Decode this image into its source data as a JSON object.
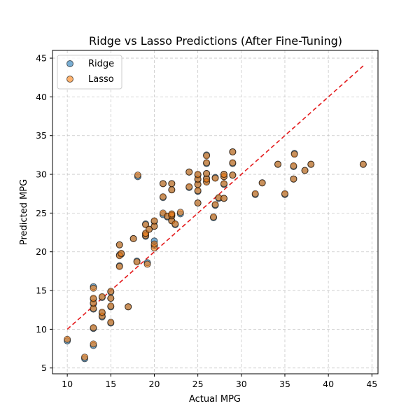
{
  "chart_data": {
    "type": "scatter",
    "title": "Ridge vs Lasso Predictions (After Fine-Tuning)",
    "xlabel": "Actual MPG",
    "ylabel": "Predicted MPG",
    "xlim": [
      8.3,
      45.7
    ],
    "ylim": [
      4.25,
      46.0
    ],
    "xticks": [
      10,
      15,
      20,
      25,
      30,
      35,
      40,
      45
    ],
    "yticks": [
      5,
      10,
      15,
      20,
      25,
      30,
      35,
      40,
      45
    ],
    "grid": true,
    "legend_position": "top-left",
    "reference_line": {
      "x": [
        10,
        44
      ],
      "y": [
        10,
        44
      ],
      "color": "#e41a1c",
      "style": "dashed"
    },
    "series": [
      {
        "name": "Ridge",
        "color": "#1f77b4",
        "points": [
          [
            10,
            8.5
          ],
          [
            12,
            6.2
          ],
          [
            13,
            7.9
          ],
          [
            13,
            10.1
          ],
          [
            13,
            12.6
          ],
          [
            13,
            13.3
          ],
          [
            13,
            13.9
          ],
          [
            13,
            15.5
          ],
          [
            14,
            11.6
          ],
          [
            14,
            12.1
          ],
          [
            14,
            14.1
          ],
          [
            15,
            10.8
          ],
          [
            15,
            12.9
          ],
          [
            15,
            14.0
          ],
          [
            15,
            14.8
          ],
          [
            16,
            18.2
          ],
          [
            16,
            19.6
          ],
          [
            16,
            20.9
          ],
          [
            16.2,
            19.7
          ],
          [
            17,
            12.9
          ],
          [
            17.6,
            21.7
          ],
          [
            18,
            18.8
          ],
          [
            18.1,
            29.7
          ],
          [
            19,
            22.0
          ],
          [
            19,
            22.3
          ],
          [
            19,
            23.6
          ],
          [
            19.2,
            18.6
          ],
          [
            19.4,
            22.9
          ],
          [
            20,
            20.8
          ],
          [
            20,
            21.4
          ],
          [
            20,
            23.3
          ],
          [
            20,
            23.9
          ],
          [
            21,
            24.8
          ],
          [
            21,
            27.0
          ],
          [
            21,
            28.8
          ],
          [
            21.5,
            24.5
          ],
          [
            22,
            24.0
          ],
          [
            22,
            24.6
          ],
          [
            22,
            24.8
          ],
          [
            22,
            28.0
          ],
          [
            22,
            28.8
          ],
          [
            22.4,
            23.5
          ],
          [
            23,
            24.9
          ],
          [
            24,
            28.3
          ],
          [
            24,
            30.3
          ],
          [
            25,
            26.3
          ],
          [
            25,
            27.8
          ],
          [
            25,
            28.7
          ],
          [
            25,
            29.3
          ],
          [
            25,
            29.9
          ],
          [
            26,
            29.1
          ],
          [
            26,
            29.5
          ],
          [
            26,
            30.1
          ],
          [
            26,
            31.4
          ],
          [
            26,
            32.5
          ],
          [
            26.8,
            24.4
          ],
          [
            27,
            26.0
          ],
          [
            27,
            29.6
          ],
          [
            27.4,
            26.9
          ],
          [
            28,
            26.9
          ],
          [
            28,
            28.7
          ],
          [
            28,
            29.7
          ],
          [
            28,
            30.0
          ],
          [
            29,
            29.9
          ],
          [
            29,
            31.4
          ],
          [
            29,
            32.9
          ],
          [
            31.6,
            27.4
          ],
          [
            32.4,
            28.9
          ],
          [
            34.2,
            31.3
          ],
          [
            35,
            27.4
          ],
          [
            36,
            29.4
          ],
          [
            36,
            31.0
          ],
          [
            36.1,
            32.7
          ],
          [
            37.3,
            30.5
          ],
          [
            38,
            31.3
          ],
          [
            44,
            31.3
          ]
        ]
      },
      {
        "name": "Lasso",
        "color": "#ff7f0e",
        "points": [
          [
            10,
            8.7
          ],
          [
            12,
            6.4
          ],
          [
            13,
            8.1
          ],
          [
            13,
            10.2
          ],
          [
            13,
            12.7
          ],
          [
            13,
            13.4
          ],
          [
            13,
            14.0
          ],
          [
            13,
            15.3
          ],
          [
            14,
            11.7
          ],
          [
            14,
            12.2
          ],
          [
            14,
            14.2
          ],
          [
            15,
            10.9
          ],
          [
            15,
            13.0
          ],
          [
            15,
            14.0
          ],
          [
            15,
            14.9
          ],
          [
            16,
            18.1
          ],
          [
            16,
            19.5
          ],
          [
            16,
            20.9
          ],
          [
            16.2,
            19.8
          ],
          [
            17,
            12.9
          ],
          [
            17.6,
            21.7
          ],
          [
            18,
            18.7
          ],
          [
            18.1,
            29.9
          ],
          [
            19,
            22.1
          ],
          [
            19,
            22.4
          ],
          [
            19,
            23.5
          ],
          [
            19.2,
            18.4
          ],
          [
            19.4,
            22.9
          ],
          [
            20,
            20.5
          ],
          [
            20,
            21.0
          ],
          [
            20,
            23.3
          ],
          [
            20,
            24.0
          ],
          [
            21,
            25.0
          ],
          [
            21,
            27.1
          ],
          [
            21,
            28.8
          ],
          [
            21.5,
            24.6
          ],
          [
            22,
            24.0
          ],
          [
            22,
            24.7
          ],
          [
            22,
            24.9
          ],
          [
            22,
            28.0
          ],
          [
            22,
            28.8
          ],
          [
            22.4,
            23.6
          ],
          [
            23,
            25.1
          ],
          [
            24,
            28.4
          ],
          [
            24,
            30.3
          ],
          [
            25,
            26.3
          ],
          [
            25,
            27.9
          ],
          [
            25,
            28.7
          ],
          [
            25,
            29.4
          ],
          [
            25,
            30.0
          ],
          [
            26,
            29.0
          ],
          [
            26,
            29.4
          ],
          [
            26,
            30.1
          ],
          [
            26,
            31.5
          ],
          [
            26,
            32.4
          ],
          [
            26.8,
            24.5
          ],
          [
            27,
            26.1
          ],
          [
            27,
            29.5
          ],
          [
            27.4,
            27.0
          ],
          [
            28,
            26.9
          ],
          [
            28,
            28.8
          ],
          [
            28,
            29.7
          ],
          [
            28,
            30.0
          ],
          [
            29,
            29.9
          ],
          [
            29,
            31.5
          ],
          [
            29,
            32.9
          ],
          [
            31.6,
            27.5
          ],
          [
            32.4,
            28.9
          ],
          [
            34.2,
            31.3
          ],
          [
            35,
            27.5
          ],
          [
            36,
            29.4
          ],
          [
            36,
            31.1
          ],
          [
            36.1,
            32.6
          ],
          [
            37.3,
            30.5
          ],
          [
            38,
            31.3
          ],
          [
            44,
            31.3
          ]
        ]
      }
    ]
  }
}
